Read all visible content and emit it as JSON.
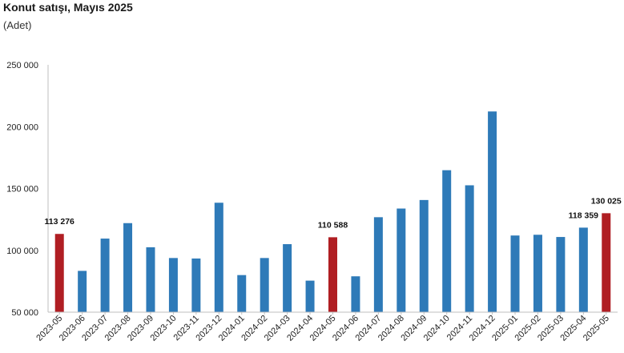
{
  "header": {
    "title": "Konut satışı, Mayıs 2025",
    "subtitle": "(Adet)"
  },
  "colors": {
    "bar": "#2e7ab8",
    "highlight": "#b01e23",
    "axis": "#bfbfbf"
  },
  "chart_data": {
    "type": "bar",
    "title": "Konut satışı, Mayıs 2025",
    "subtitle": "(Adet)",
    "xlabel": "",
    "ylabel": "",
    "ylim": [
      50000,
      250000
    ],
    "yticks": [
      50000,
      100000,
      150000,
      200000,
      250000
    ],
    "ytick_labels": [
      "50 000",
      "100 000",
      "150 000",
      "200 000",
      "250 000"
    ],
    "grid": false,
    "categories": [
      "2023-05",
      "2023-06",
      "2023-07",
      "2023-08",
      "2023-09",
      "2023-10",
      "2023-11",
      "2023-12",
      "2024-01",
      "2024-02",
      "2024-03",
      "2024-04",
      "2024-05",
      "2024-06",
      "2024-07",
      "2024-08",
      "2024-09",
      "2024-10",
      "2024-11",
      "2024-12",
      "2025-01",
      "2025-02",
      "2025-03",
      "2025-04",
      "2025-05"
    ],
    "values": [
      113276,
      83400,
      109500,
      122000,
      102500,
      93800,
      93400,
      138500,
      80000,
      93800,
      105000,
      75500,
      110588,
      79000,
      126800,
      133800,
      140700,
      164800,
      152600,
      212300,
      112000,
      112600,
      110800,
      118359,
      130025
    ],
    "highlighted": [
      "2023-05",
      "2024-05",
      "2025-05"
    ],
    "data_labels": [
      {
        "category": "2023-05",
        "text": "113 276"
      },
      {
        "category": "2024-05",
        "text": "110 588"
      },
      {
        "category": "2025-04",
        "text": "118 359"
      },
      {
        "category": "2025-05",
        "text": "130 025"
      }
    ]
  }
}
